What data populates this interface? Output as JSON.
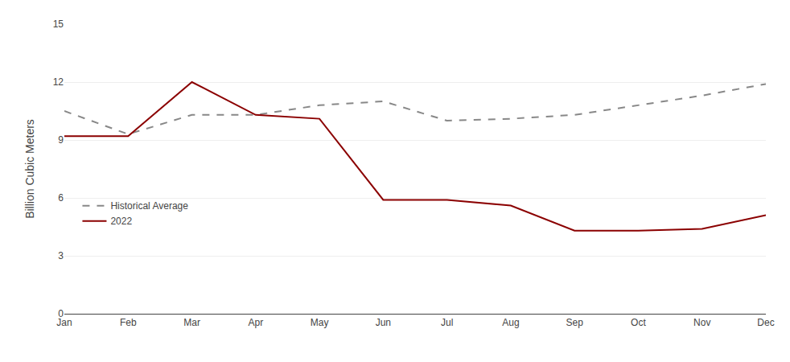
{
  "chart_data": {
    "type": "line",
    "categories": [
      "Jan",
      "Feb",
      "Mar",
      "Apr",
      "May",
      "Jun",
      "Jul",
      "Aug",
      "Sep",
      "Oct",
      "Nov",
      "Dec"
    ],
    "ylabel": "Billion Cubic Meters",
    "series": [
      {
        "name": "Historical Average",
        "color": "#888888",
        "line_style": "dashed",
        "values": [
          10.5,
          9.3,
          10.3,
          10.3,
          10.8,
          11.0,
          10.0,
          10.1,
          10.3,
          10.8,
          11.3,
          11.9
        ]
      },
      {
        "name": "2022",
        "color": "#8B0000",
        "line_style": "solid",
        "values": [
          9.2,
          9.2,
          12.0,
          10.3,
          10.1,
          5.9,
          5.9,
          5.6,
          4.3,
          4.3,
          4.4,
          5.1
        ]
      }
    ],
    "ylim": [
      0,
      15
    ],
    "yticks": [
      0,
      3,
      6,
      9,
      12,
      15
    ],
    "grid": true,
    "legend": "lower left"
  }
}
